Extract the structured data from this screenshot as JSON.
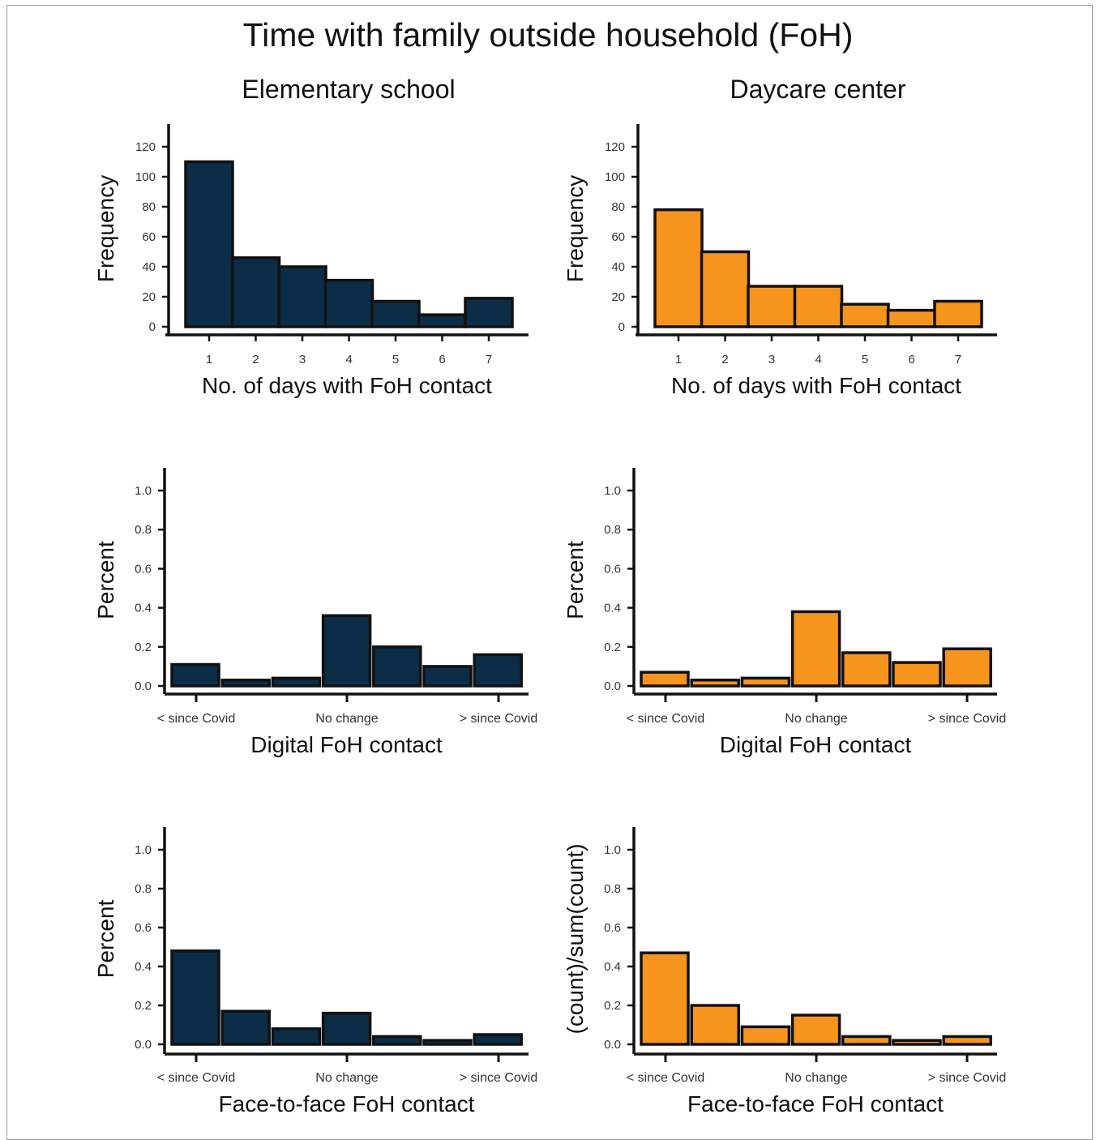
{
  "figure": {
    "title": "Time with family outside household (FoH)",
    "columns": [
      "Elementary school",
      "Daycare center"
    ],
    "colors": {
      "elementary": "#0c2d48",
      "daycare": "#f7941d",
      "outline": "#111111"
    }
  },
  "chart_data": [
    {
      "type": "bar",
      "panel": "days-elementary",
      "categories": [
        "1",
        "2",
        "3",
        "4",
        "5",
        "6",
        "7"
      ],
      "values": [
        110,
        46,
        40,
        31,
        17,
        8,
        19
      ],
      "xlabel": "No. of days with FoH contact",
      "ylabel": "Frequency",
      "ylim": [
        0,
        120
      ],
      "yticks": [
        "0",
        "20",
        "40",
        "60",
        "80",
        "100",
        "120"
      ],
      "color": "#0c2d48"
    },
    {
      "type": "bar",
      "panel": "days-daycare",
      "categories": [
        "1",
        "2",
        "3",
        "4",
        "5",
        "6",
        "7"
      ],
      "values": [
        78,
        50,
        27,
        27,
        15,
        11,
        17
      ],
      "xlabel": "No. of days with FoH contact",
      "ylabel": "Frequency",
      "ylim": [
        0,
        120
      ],
      "yticks": [
        "0",
        "20",
        "40",
        "60",
        "80",
        "100",
        "120"
      ],
      "color": "#f7941d"
    },
    {
      "type": "bar",
      "panel": "digital-elementary",
      "values": [
        0.11,
        0.03,
        0.04,
        0.36,
        0.2,
        0.1,
        0.16
      ],
      "tick_labels": [
        "< since Covid",
        "No change",
        "> since Covid"
      ],
      "xlabel": "Digital FoH contact",
      "ylabel": "Percent",
      "ylim": [
        0,
        1
      ],
      "yticks": [
        "0.0",
        "0.2",
        "0.4",
        "0.6",
        "0.8",
        "1.0"
      ],
      "color": "#0c2d48"
    },
    {
      "type": "bar",
      "panel": "digital-daycare",
      "values": [
        0.07,
        0.03,
        0.04,
        0.38,
        0.17,
        0.12,
        0.19
      ],
      "tick_labels": [
        "< since Covid",
        "No change",
        "> since Covid"
      ],
      "xlabel": "Digital FoH contact",
      "ylabel": "Percent",
      "ylim": [
        0,
        1
      ],
      "yticks": [
        "0.0",
        "0.2",
        "0.4",
        "0.6",
        "0.8",
        "1.0"
      ],
      "color": "#f7941d"
    },
    {
      "type": "bar",
      "panel": "face-elementary",
      "values": [
        0.48,
        0.17,
        0.08,
        0.16,
        0.04,
        0.02,
        0.05
      ],
      "tick_labels": [
        "< since Covid",
        "No change",
        "> since Covid"
      ],
      "xlabel": "Face-to-face FoH contact",
      "ylabel": "Percent",
      "ylim": [
        0,
        1
      ],
      "yticks": [
        "0.0",
        "0.2",
        "0.4",
        "0.6",
        "0.8",
        "1.0"
      ],
      "color": "#0c2d48"
    },
    {
      "type": "bar",
      "panel": "face-daycare",
      "values": [
        0.47,
        0.2,
        0.09,
        0.15,
        0.04,
        0.02,
        0.04
      ],
      "tick_labels": [
        "< since Covid",
        "No change",
        "> since Covid"
      ],
      "xlabel": "Face-to-face FoH contact",
      "ylabel": "(count)/sum(count)",
      "ylim": [
        0,
        1
      ],
      "yticks": [
        "0.0",
        "0.2",
        "0.4",
        "0.6",
        "0.8",
        "1.0"
      ],
      "color": "#f7941d"
    }
  ]
}
